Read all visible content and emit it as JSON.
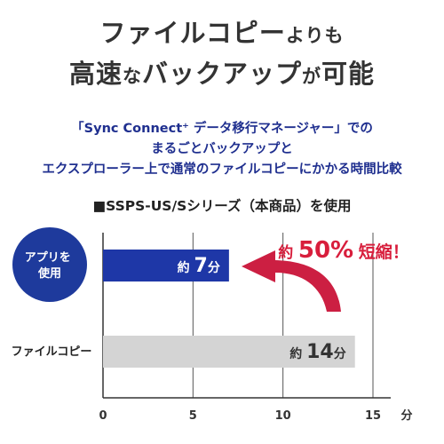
{
  "headline": {
    "line1": "ファイルコピー",
    "line1_small": "よりも",
    "line2a": "高速",
    "line2b": "な",
    "line2c": "バックアップ",
    "line2d": "が",
    "line2e": "可能"
  },
  "description": {
    "line1": "「Sync Connect⁺ データ移行マネージャー」での",
    "line2": "まるごとバックアップと",
    "line3": "エクスプローラー上で通常のファイルコピーにかかる時間比較"
  },
  "condition_label": "■SSPS-US/Sシリーズ（本商品）を使用",
  "callout": {
    "prefix": "約",
    "value": "50%",
    "suffix": "短縮！"
  },
  "colors": {
    "app_bar": "#1e37a7",
    "copy_bar": "#d4d4d4",
    "circle": "#1e3a9c",
    "callout": "#d81e3c",
    "arrow": "#cc1f42",
    "axis": "#333333",
    "grid": "#555555",
    "description": "#1f2f8f"
  },
  "chart_data": {
    "type": "bar",
    "orientation": "horizontal",
    "categories": [
      "アプリを使用",
      "ファイルコピー"
    ],
    "category_label_lines": [
      [
        "アプリを",
        "使用"
      ],
      [
        "ファイルコピー"
      ]
    ],
    "values": [
      7,
      14
    ],
    "data_labels": [
      {
        "prefix": "約",
        "value": "7",
        "unit": "分"
      },
      {
        "prefix": "約",
        "value": "14",
        "unit": "分"
      }
    ],
    "xlim": [
      0,
      15
    ],
    "xticks": [
      0,
      5,
      10,
      15
    ],
    "x_unit": "分",
    "grid": true
  }
}
